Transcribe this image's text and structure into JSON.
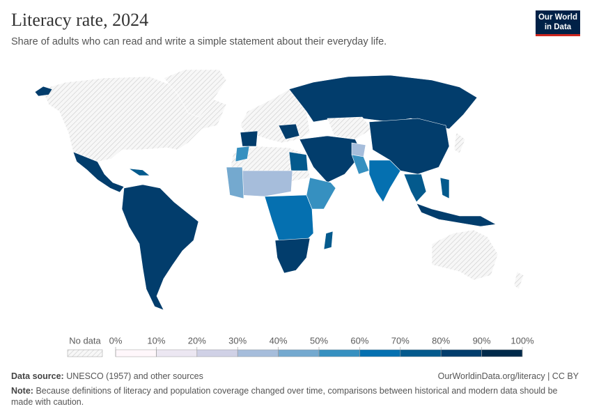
{
  "header": {
    "title": "Literacy rate, 2024",
    "subtitle": "Share of adults who can read and write a simple statement about their everyday life.",
    "logo": [
      "Our World",
      "in Data"
    ]
  },
  "legend": {
    "no_data": "No data",
    "ticks": [
      {
        "value": 0,
        "label": "0%"
      },
      {
        "value": 10,
        "label": "10%"
      },
      {
        "value": 20,
        "label": "20%"
      },
      {
        "value": 30,
        "label": "30%"
      },
      {
        "value": 40,
        "label": "40%"
      },
      {
        "value": 50,
        "label": "50%"
      },
      {
        "value": 60,
        "label": "60%"
      },
      {
        "value": 70,
        "label": "70%"
      },
      {
        "value": 80,
        "label": "80%"
      },
      {
        "value": 90,
        "label": "90%"
      },
      {
        "value": 100,
        "label": "100%"
      }
    ],
    "colors": [
      "#fff7fb",
      "#ece7f2",
      "#d0d1e6",
      "#a6bddb",
      "#74a9cf",
      "#3690c0",
      "#0570b0",
      "#045a8d",
      "#023d6c",
      "#00294a"
    ]
  },
  "footer": {
    "source_label": "Data source:",
    "source": "UNESCO (1957) and other sources",
    "url": "OurWorldinData.org/literacy | CC BY",
    "note_label": "Note:",
    "note": "Because definitions of literacy and population coverage changed over time, comparisons between historical and modern data should be made with caution."
  }
}
